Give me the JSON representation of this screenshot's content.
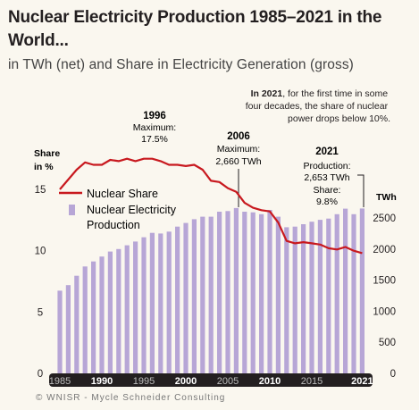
{
  "title": "Nuclear Electricity Production 1985–2021 in the World...",
  "subtitle": "in TWh (net) and Share in Electricity Generation (gross)",
  "footer": "© WNISR - Mycle Schneider Consulting",
  "colors": {
    "bars": "#b7a6d6",
    "line": "#c8191f",
    "axis_band": "#231f20",
    "background": "#faf7ef"
  },
  "annotations": {
    "note_2021": "In 2021, for the first time in some four decades, the share of nuclear power drops below 10%.",
    "note_2021_bold": "In 2021",
    "y1996": {
      "year": "1996",
      "line1": "Maximum:",
      "line2": "17.5%"
    },
    "y2006": {
      "year": "2006",
      "line1": "Maximum:",
      "line2": "2,660 TWh"
    },
    "y2021": {
      "year": "2021",
      "line1": "Production:",
      "line2": "2,653 TWh",
      "line3": "Share:",
      "line4": "9.8%"
    }
  },
  "chart_data": {
    "type": "bar",
    "x": [
      1985,
      1986,
      1987,
      1988,
      1989,
      1990,
      1991,
      1992,
      1993,
      1994,
      1995,
      1996,
      1997,
      1998,
      1999,
      2000,
      2001,
      2002,
      2003,
      2004,
      2005,
      2006,
      2007,
      2008,
      2009,
      2010,
      2011,
      2012,
      2013,
      2014,
      2015,
      2016,
      2017,
      2018,
      2019,
      2020,
      2021
    ],
    "series": [
      {
        "name": "Nuclear Electricity Production",
        "kind": "bar",
        "axis": "right",
        "unit": "TWh",
        "values": [
          1330,
          1420,
          1570,
          1720,
          1800,
          1880,
          1960,
          2000,
          2060,
          2120,
          2190,
          2260,
          2250,
          2280,
          2360,
          2420,
          2480,
          2520,
          2520,
          2600,
          2610,
          2660,
          2600,
          2590,
          2560,
          2630,
          2520,
          2350,
          2360,
          2400,
          2440,
          2470,
          2490,
          2560,
          2650,
          2560,
          2653
        ]
      },
      {
        "name": "Nuclear Share",
        "kind": "line",
        "axis": "left",
        "unit": "%",
        "values": [
          15.0,
          15.8,
          16.6,
          17.2,
          17.0,
          17.0,
          17.4,
          17.3,
          17.5,
          17.3,
          17.5,
          17.5,
          17.3,
          17.0,
          17.0,
          16.9,
          17.0,
          16.6,
          15.7,
          15.6,
          15.1,
          14.8,
          13.9,
          13.5,
          13.3,
          13.2,
          12.3,
          10.8,
          10.6,
          10.7,
          10.6,
          10.5,
          10.2,
          10.1,
          10.3,
          10.0,
          9.8
        ]
      }
    ],
    "left_axis": {
      "label_line1": "Share",
      "label_line2": "in %",
      "ticks": [
        "0",
        "5",
        "10",
        "15"
      ],
      "range": [
        0,
        19
      ]
    },
    "right_axis": {
      "label": "TWh",
      "ticks": [
        "0",
        "500",
        "1000",
        "1500",
        "2000",
        "2500"
      ],
      "range": [
        0,
        2900
      ]
    },
    "x_ticks": [
      {
        "label": "1985",
        "bold": false
      },
      {
        "label": "1990",
        "bold": true
      },
      {
        "label": "1995",
        "bold": false
      },
      {
        "label": "2000",
        "bold": true
      },
      {
        "label": "2005",
        "bold": false
      },
      {
        "label": "2010",
        "bold": true
      },
      {
        "label": "2015",
        "bold": false
      },
      {
        "label": "2021",
        "bold": true
      }
    ],
    "legend": {
      "position": "left",
      "entries": [
        "Nuclear Share",
        "Nuclear Electricity Production"
      ]
    },
    "grid": false
  }
}
